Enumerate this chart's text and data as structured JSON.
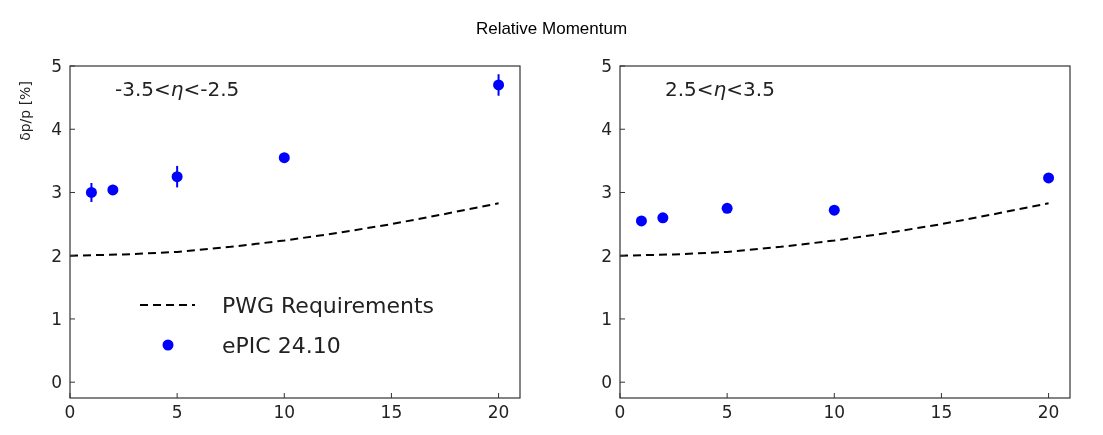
{
  "chart_data": [
    {
      "type": "scatter",
      "title": "Relative Momentum",
      "ylabel": "δp/p [%]",
      "annotations": [
        "-3.5<η<-2.5"
      ],
      "xlim": [
        0,
        21
      ],
      "ylim": [
        -0.25,
        5
      ],
      "xticks": [
        0,
        5,
        10,
        15,
        20
      ],
      "yticks": [
        0,
        1,
        2,
        3,
        4,
        5
      ],
      "legend": "bottom",
      "grid": false,
      "series": [
        {
          "name": "PWG Requirements",
          "type": "line",
          "line_style": "dashed",
          "color": "#000000",
          "x": [
            0,
            2.5,
            5,
            7.5,
            10,
            12.5,
            15,
            17.5,
            20
          ],
          "values": [
            2,
            2.02,
            2.06,
            2.14,
            2.24,
            2.36,
            2.5,
            2.66,
            2.83
          ]
        },
        {
          "name": "ePIC 24.10",
          "type": "scatter",
          "marker": "circle",
          "color": "#0000ff",
          "x": [
            1,
            2,
            5,
            10,
            20
          ],
          "values": [
            3.0,
            3.04,
            3.25,
            3.55,
            4.7
          ],
          "errors": [
            0.15,
            0.08,
            0.17,
            0.03,
            0.17
          ]
        }
      ]
    },
    {
      "type": "scatter",
      "annotations": [
        "2.5<η<3.5"
      ],
      "xlim": [
        0,
        21
      ],
      "ylim": [
        -0.25,
        5
      ],
      "xticks": [
        0,
        5,
        10,
        15,
        20
      ],
      "yticks": [
        0,
        1,
        2,
        3,
        4,
        5
      ],
      "legend": false,
      "grid": false,
      "series": [
        {
          "type": "line",
          "line_style": "dashed",
          "color": "#000000",
          "x": [
            0,
            2.5,
            5,
            7.5,
            10,
            12.5,
            15,
            17.5,
            20
          ],
          "values": [
            2,
            2.02,
            2.06,
            2.14,
            2.24,
            2.36,
            2.5,
            2.66,
            2.83
          ]
        },
        {
          "type": "scatter",
          "marker": "circle",
          "color": "#0000ff",
          "x": [
            1,
            2,
            5,
            10,
            20
          ],
          "values": [
            2.55,
            2.6,
            2.75,
            2.72,
            3.23
          ]
        }
      ]
    }
  ]
}
